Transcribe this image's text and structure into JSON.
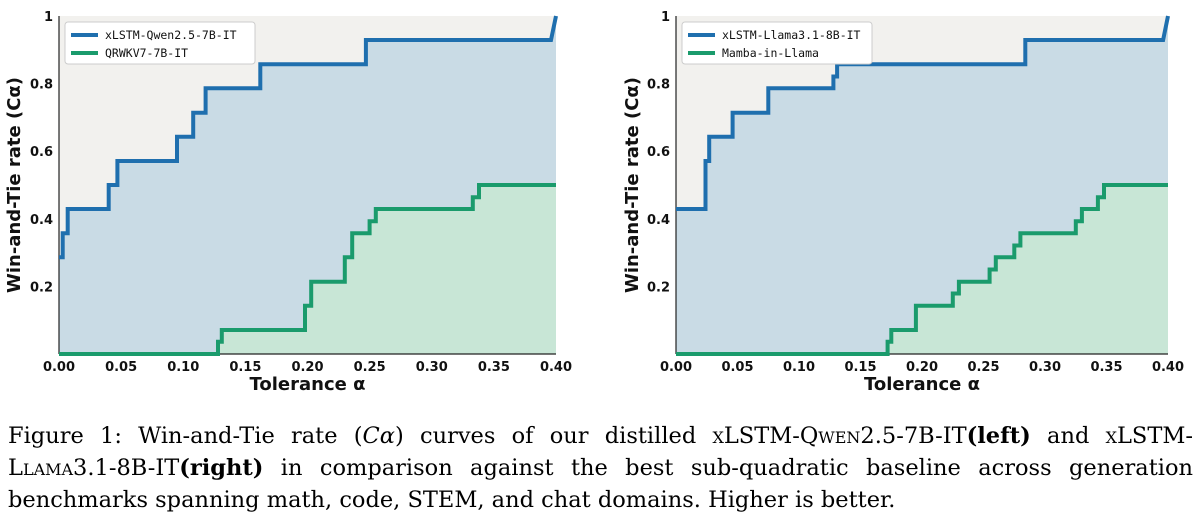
{
  "colors": {
    "blue": "#1f6fae",
    "green": "#1a9b6c",
    "blue_fill": "#c9dbe5",
    "green_fill": "#c8e6d6",
    "bg": "#f2f1ee"
  },
  "chart_data": [
    {
      "type": "line",
      "step": true,
      "xlabel": "Tolerance α",
      "ylabel": "Win-and-Tie rate (Cα)",
      "xlim": [
        0,
        0.4
      ],
      "ylim": [
        0,
        1
      ],
      "xticks": [
        "0.00",
        "0.05",
        "0.10",
        "0.15",
        "0.20",
        "0.25",
        "0.30",
        "0.35",
        "0.40"
      ],
      "yticks": [
        "0.2",
        "0.4",
        "0.6",
        "0.8",
        "1"
      ],
      "legend": "top-left",
      "series": [
        {
          "name": "xLSTM-Qwen2.5-7B-IT",
          "color": "blue",
          "x": [
            0,
            0.003,
            0.003,
            0.007,
            0.007,
            0.04,
            0.04,
            0.047,
            0.047,
            0.095,
            0.095,
            0.101,
            0.101,
            0.108,
            0.108,
            0.114,
            0.114,
            0.118,
            0.118,
            0.12,
            0.12,
            0.162,
            0.162,
            0.166,
            0.166,
            0.222,
            0.222,
            0.247,
            0.247,
            0.254,
            0.254,
            0.396,
            0.396,
            0.4
          ],
          "y": [
            0.286,
            0.286,
            0.357,
            0.357,
            0.429,
            0.429,
            0.5,
            0.5,
            0.571,
            0.571,
            0.643,
            0.643,
            0.643,
            0.643,
            0.714,
            0.714,
            0.714,
            0.714,
            0.786,
            0.786,
            0.786,
            0.786,
            0.857,
            0.857,
            0.857,
            0.857,
            0.857,
            0.857,
            0.929,
            0.929,
            0.929,
            0.929,
            0.929,
            1.0
          ]
        },
        {
          "name": "QRWKV7-7B-IT",
          "color": "green",
          "x": [
            0,
            0.128,
            0.128,
            0.131,
            0.131,
            0.198,
            0.198,
            0.203,
            0.203,
            0.23,
            0.23,
            0.236,
            0.236,
            0.25,
            0.25,
            0.255,
            0.255,
            0.333,
            0.333,
            0.338,
            0.338,
            0.4
          ],
          "y": [
            0,
            0,
            0.036,
            0.036,
            0.071,
            0.071,
            0.143,
            0.143,
            0.214,
            0.214,
            0.286,
            0.286,
            0.357,
            0.357,
            0.393,
            0.393,
            0.429,
            0.429,
            0.464,
            0.464,
            0.5,
            0.5
          ]
        }
      ]
    },
    {
      "type": "line",
      "step": true,
      "xlabel": "Tolerance α",
      "ylabel": "Win-and-Tie rate (Cα)",
      "xlim": [
        0,
        0.4
      ],
      "ylim": [
        0,
        1
      ],
      "xticks": [
        "0.00",
        "0.05",
        "0.10",
        "0.15",
        "0.20",
        "0.25",
        "0.30",
        "0.35",
        "0.40"
      ],
      "yticks": [
        "0.2",
        "0.4",
        "0.6",
        "0.8",
        "1"
      ],
      "legend": "top-left",
      "series": [
        {
          "name": "xLSTM-Llama3.1-8B-IT",
          "color": "blue",
          "x": [
            0,
            0.024,
            0.024,
            0.027,
            0.027,
            0.046,
            0.046,
            0.05,
            0.05,
            0.075,
            0.075,
            0.08,
            0.08,
            0.128,
            0.128,
            0.131,
            0.131,
            0.133,
            0.133,
            0.284,
            0.284,
            0.288,
            0.288,
            0.396,
            0.396,
            0.4
          ],
          "y": [
            0.429,
            0.429,
            0.571,
            0.571,
            0.643,
            0.643,
            0.714,
            0.714,
            0.714,
            0.714,
            0.786,
            0.786,
            0.786,
            0.786,
            0.821,
            0.821,
            0.857,
            0.857,
            0.857,
            0.857,
            0.929,
            0.929,
            0.929,
            0.929,
            0.929,
            1.0
          ]
        },
        {
          "name": "Mamba-in-Llama",
          "color": "green",
          "x": [
            0,
            0.172,
            0.172,
            0.175,
            0.175,
            0.195,
            0.195,
            0.225,
            0.225,
            0.23,
            0.23,
            0.255,
            0.255,
            0.26,
            0.26,
            0.275,
            0.275,
            0.28,
            0.28,
            0.325,
            0.325,
            0.33,
            0.33,
            0.343,
            0.343,
            0.348,
            0.348,
            0.4
          ],
          "y": [
            0,
            0,
            0.036,
            0.036,
            0.071,
            0.071,
            0.143,
            0.143,
            0.179,
            0.179,
            0.214,
            0.214,
            0.25,
            0.25,
            0.286,
            0.286,
            0.321,
            0.321,
            0.357,
            0.357,
            0.393,
            0.393,
            0.429,
            0.429,
            0.464,
            0.464,
            0.5,
            0.5
          ]
        }
      ]
    }
  ],
  "caption": {
    "label": "Figure 1:",
    "p1": " Win-and-Tie rate (",
    "c_alpha": "Cα",
    "p2": ") curves of our distilled ",
    "model1": "xLSTM-Qwen2.5-7B-IT",
    "left": "(left)",
    "p3": " and ",
    "model2": "xLSTM-Llama3.1-8B-IT",
    "right": "(right)",
    "p4": " in comparison against the best sub-quadratic baseline across generation benchmarks spanning math, code, STEM, and chat domains. Higher is better."
  }
}
